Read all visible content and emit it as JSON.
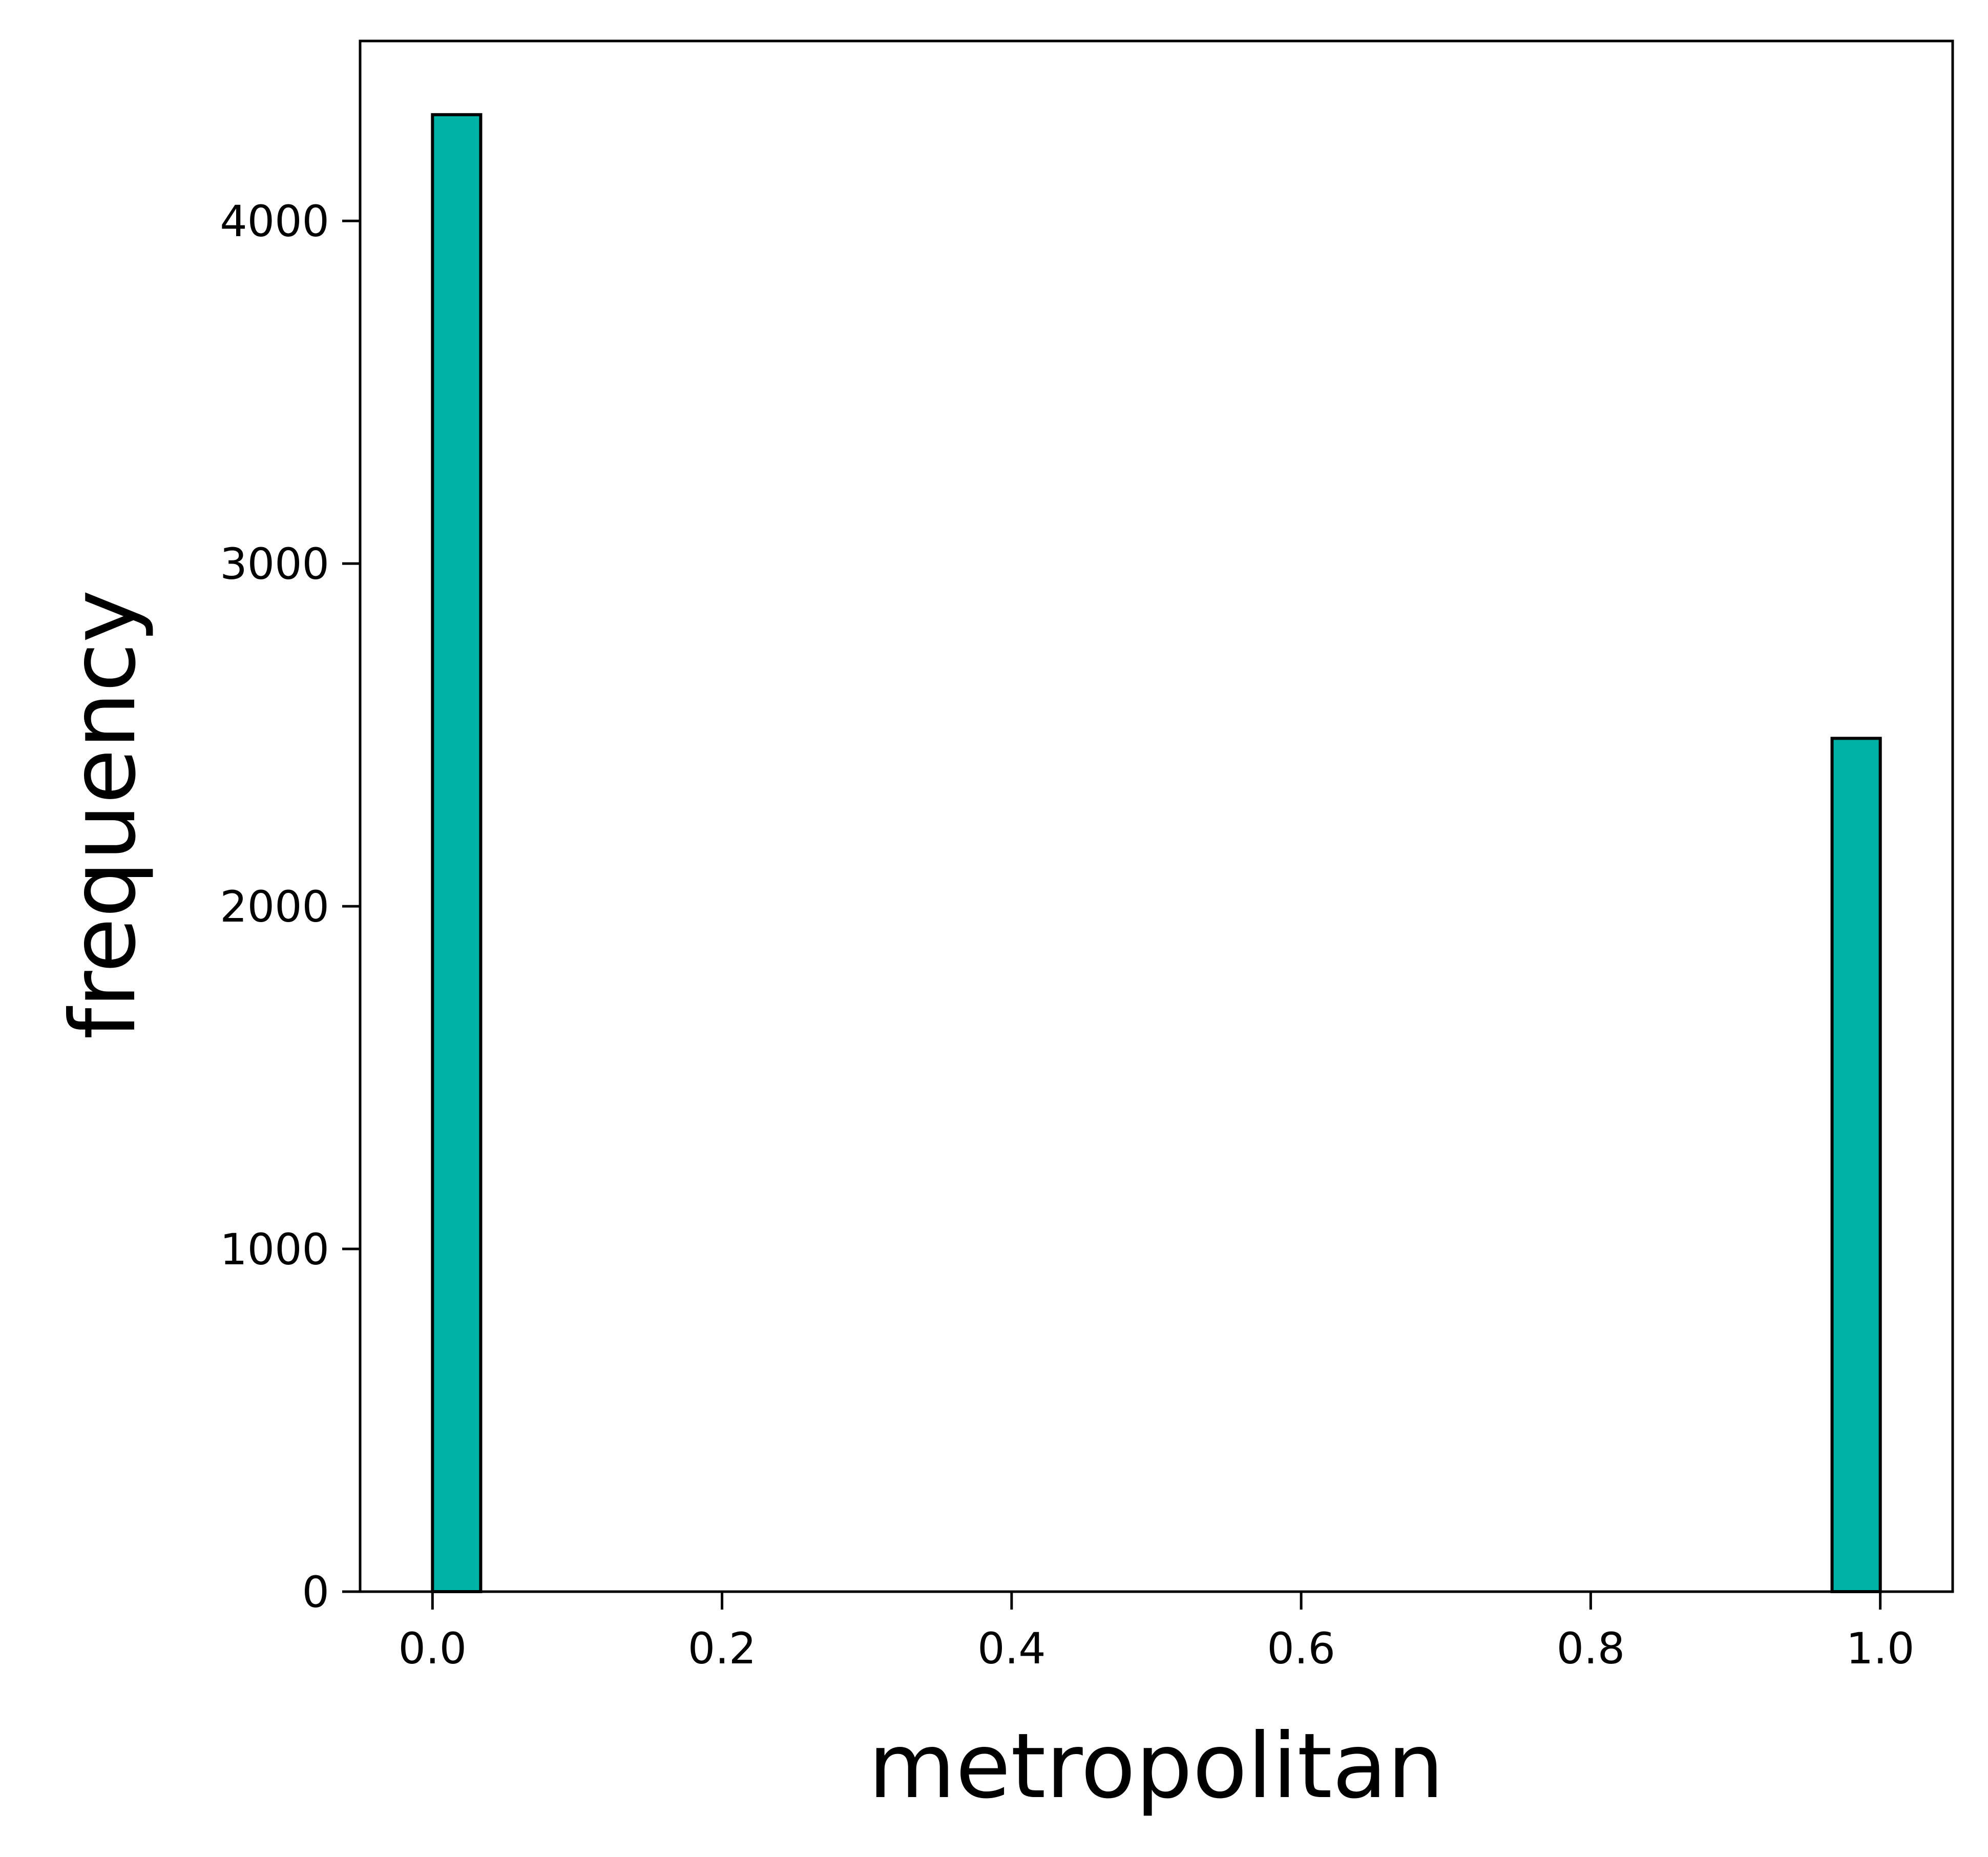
{
  "chart_data": {
    "type": "bar",
    "title": "",
    "xlabel": "metropolitan",
    "ylabel": "frequency",
    "x_ticks": [
      "0.0",
      "0.2",
      "0.4",
      "0.6",
      "0.8",
      "1.0"
    ],
    "y_ticks": [
      "0",
      "1000",
      "2000",
      "3000",
      "4000"
    ],
    "xlim": [
      -0.05,
      1.05
    ],
    "ylim": [
      0,
      4525
    ],
    "bin_width": 0.0333,
    "bars": [
      {
        "x_start": 0.0,
        "x_end": 0.0333,
        "value": 4310
      },
      {
        "x_start": 0.9667,
        "x_end": 1.0,
        "value": 2490
      }
    ],
    "grid": false,
    "legend": "none",
    "colors": {
      "bar_fill": "#00b2a5",
      "bar_edge": "#000000",
      "axes": "#000000"
    }
  }
}
